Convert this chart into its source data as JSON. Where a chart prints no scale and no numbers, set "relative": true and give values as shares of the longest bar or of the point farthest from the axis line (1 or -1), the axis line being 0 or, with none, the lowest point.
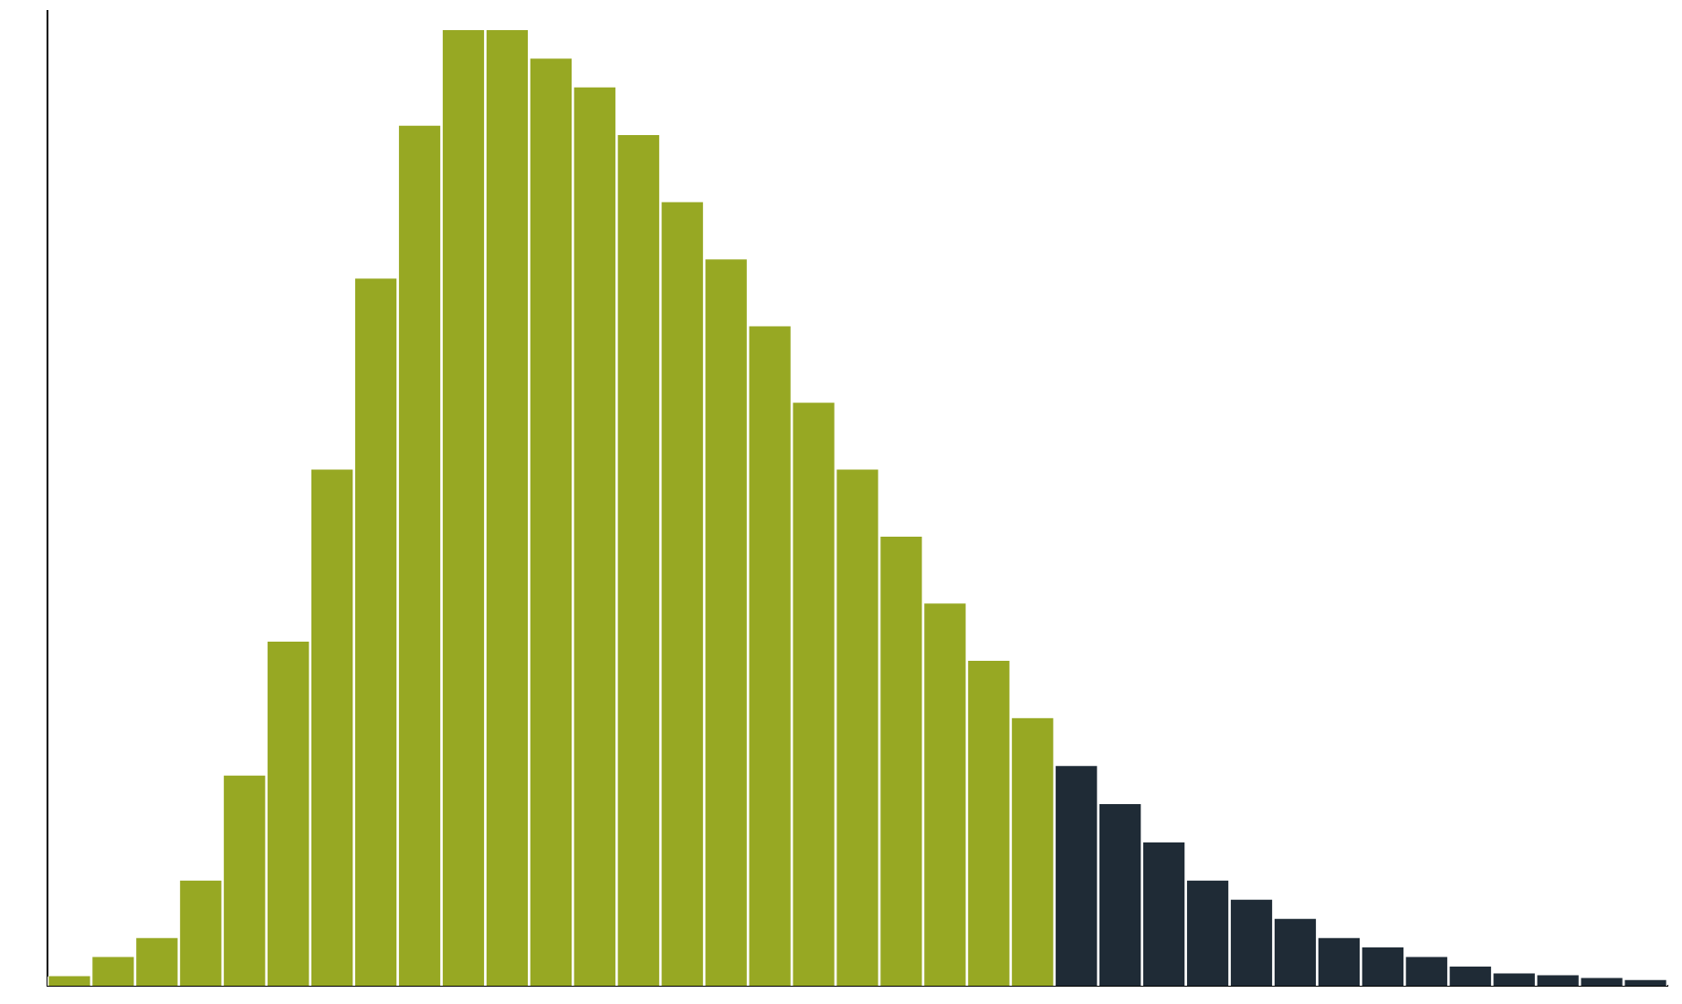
{
  "chart_data": {
    "type": "bar",
    "relative": true,
    "categories": [
      null,
      null,
      null,
      null,
      null,
      null,
      null,
      null,
      null,
      null,
      null,
      null,
      null,
      null,
      null,
      null,
      null,
      null,
      null,
      null,
      null,
      null,
      null,
      null,
      null,
      null,
      null,
      null,
      null,
      null,
      null,
      null,
      null,
      null,
      null,
      null,
      null
    ],
    "values": [
      0.01,
      0.03,
      0.05,
      0.11,
      0.22,
      0.36,
      0.54,
      0.74,
      0.9,
      1,
      1,
      0.97,
      0.94,
      0.89,
      0.82,
      0.76,
      0.69,
      0.61,
      0.54,
      0.47,
      0.4,
      0.34,
      0.28,
      0.23,
      0.19,
      0.15,
      0.11,
      0.09,
      0.07,
      0.05,
      0.04,
      0.03,
      0.02,
      0.013,
      0.011,
      0.008,
      0.006
    ],
    "colors": [
      "#97a823",
      "#97a823",
      "#97a823",
      "#97a823",
      "#97a823",
      "#97a823",
      "#97a823",
      "#97a823",
      "#97a823",
      "#97a823",
      "#97a823",
      "#97a823",
      "#97a823",
      "#97a823",
      "#97a823",
      "#97a823",
      "#97a823",
      "#97a823",
      "#97a823",
      "#97a823",
      "#97a823",
      "#97a823",
      "#97a823",
      "#1f2b36",
      "#1f2b36",
      "#1f2b36",
      "#1f2b36",
      "#1f2b36",
      "#1f2b36",
      "#1f2b36",
      "#1f2b36",
      "#1f2b36",
      "#1f2b36",
      "#1f2b36",
      "#1f2b36",
      "#1f2b36",
      "#1f2b36"
    ]
  }
}
